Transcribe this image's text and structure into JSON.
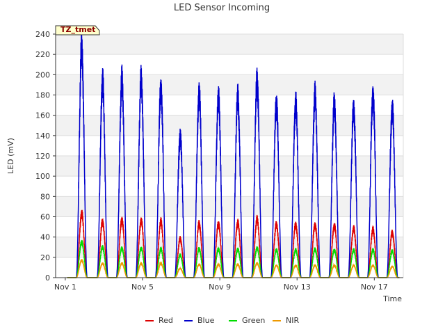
{
  "chart_data": {
    "type": "line",
    "title": "LED Sensor Incoming",
    "xlabel": "Time",
    "ylabel": "LED (mV)",
    "site_label": "TZ_tmet",
    "ylim": [
      0,
      240
    ],
    "xlim": [
      0.5,
      18.5
    ],
    "yticks": [
      0,
      20,
      40,
      60,
      80,
      100,
      120,
      140,
      160,
      180,
      200,
      220,
      240
    ],
    "xticks": [
      {
        "value": 1,
        "label": "Nov 1"
      },
      {
        "value": 5,
        "label": "Nov 5"
      },
      {
        "value": 9,
        "label": "Nov 9"
      },
      {
        "value": 13,
        "label": "Nov 13"
      },
      {
        "value": 17,
        "label": "Nov 17"
      }
    ],
    "grid": true,
    "legend_position": "bottom",
    "day_centers": [
      1.85,
      2.93,
      3.93,
      4.93,
      5.95,
      6.95,
      7.93,
      8.93,
      9.93,
      10.93,
      11.93,
      12.93,
      13.93,
      14.93,
      15.93,
      16.93,
      17.93
    ],
    "series": [
      {
        "name": "Red",
        "color": "#dd0000",
        "peaks": [
          63,
          55,
          57,
          56,
          55,
          38,
          53,
          53,
          54,
          57,
          52,
          52,
          52,
          51,
          48,
          47,
          44
        ]
      },
      {
        "name": "Blue",
        "color": "#0000cc",
        "peaks": [
          225,
          192,
          193,
          194,
          187,
          139,
          181,
          176,
          177,
          193,
          171,
          171,
          179,
          170,
          166,
          180,
          166
        ]
      },
      {
        "name": "Green",
        "color": "#00dd00",
        "peaks": [
          35,
          30,
          29,
          29,
          28,
          22,
          28,
          28,
          28,
          29,
          27,
          27,
          28,
          27,
          27,
          27,
          26
        ]
      },
      {
        "name": "NIR",
        "color": "#ee9900",
        "peaks": [
          17,
          14,
          14,
          14,
          14,
          9,
          13,
          13,
          13,
          14,
          12,
          12,
          12,
          12,
          12,
          12,
          11
        ]
      }
    ]
  }
}
